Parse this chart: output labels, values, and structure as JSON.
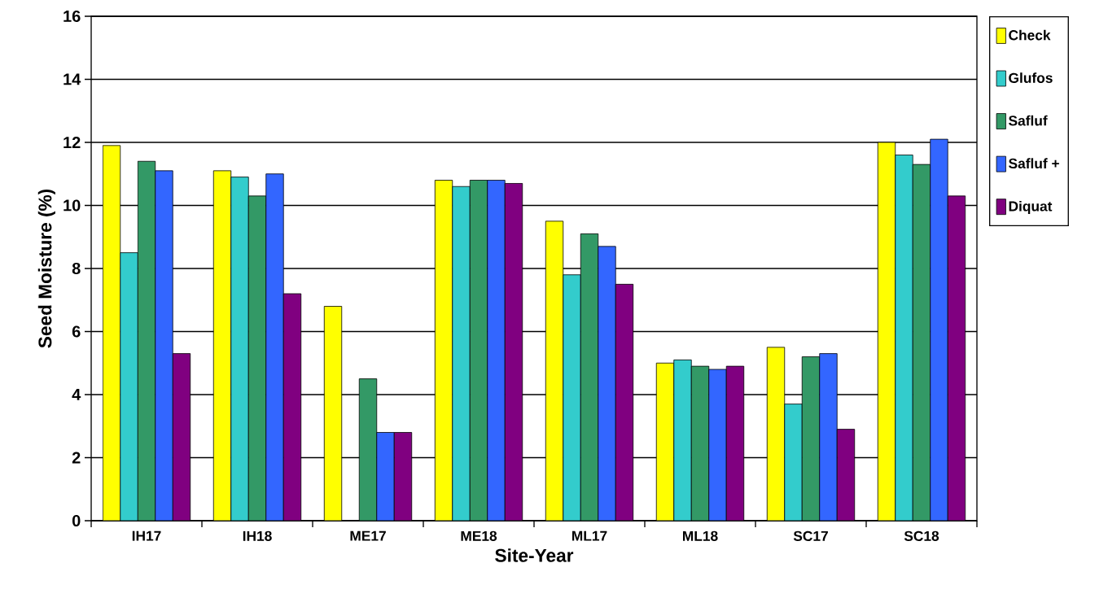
{
  "chart_data": {
    "type": "bar",
    "xlabel": "Site-Year",
    "ylabel": "Seed Moisture (%)",
    "categories": [
      "IH17",
      "IH18",
      "ME17",
      "ME18",
      "ML17",
      "ML18",
      "SC17",
      "SC18"
    ],
    "series": [
      {
        "name": "Check",
        "color": "#ffff00",
        "values": [
          11.9,
          11.1,
          6.8,
          10.8,
          9.5,
          5.0,
          5.5,
          12.0
        ]
      },
      {
        "name": "Glufos",
        "color": "#33cccc",
        "values": [
          8.5,
          10.9,
          null,
          10.6,
          7.8,
          5.1,
          3.7,
          11.6
        ]
      },
      {
        "name": "Safluf",
        "color": "#339966",
        "values": [
          11.4,
          10.3,
          4.5,
          10.8,
          9.1,
          4.9,
          5.2,
          11.3
        ]
      },
      {
        "name": "Safluf +",
        "color": "#3366ff",
        "values": [
          11.1,
          11.0,
          2.8,
          10.8,
          8.7,
          4.8,
          5.3,
          12.1
        ]
      },
      {
        "name": "Diquat",
        "color": "#800080",
        "values": [
          5.3,
          7.2,
          2.8,
          10.7,
          7.5,
          4.9,
          2.9,
          10.3
        ]
      }
    ],
    "ylim": [
      0,
      16
    ],
    "yticks": [
      0,
      2,
      4,
      6,
      8,
      10,
      12,
      14,
      16
    ],
    "grid": "y",
    "legend": "right"
  }
}
